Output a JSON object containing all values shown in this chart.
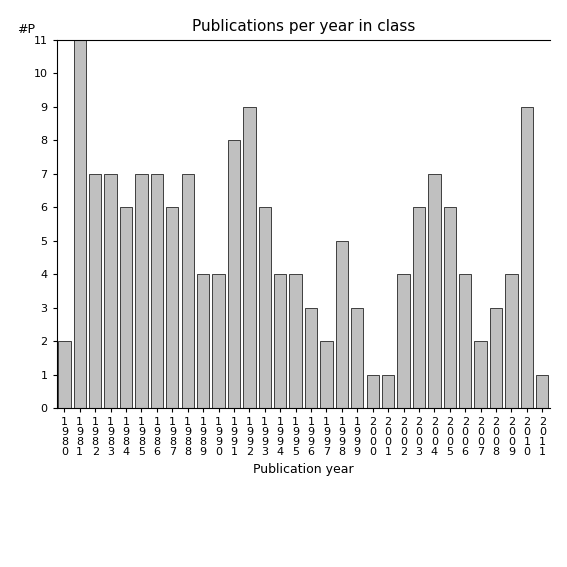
{
  "title": "Publications per year in class",
  "xlabel": "Publication year",
  "ylabel": "#P",
  "years": [
    "1980",
    "1981",
    "1982",
    "1983",
    "1984",
    "1985",
    "1986",
    "1987",
    "1988",
    "1989",
    "1990",
    "1991",
    "1992",
    "1993",
    "1994",
    "1995",
    "1996",
    "1997",
    "1998",
    "1999",
    "2000",
    "2001",
    "2002",
    "2003",
    "2004",
    "2005",
    "2006",
    "2007",
    "2008",
    "2009",
    "2010",
    "2011"
  ],
  "values": [
    2,
    11,
    7,
    7,
    6,
    7,
    7,
    6,
    7,
    4,
    4,
    8,
    9,
    6,
    4,
    4,
    3,
    2,
    5,
    3,
    1,
    1,
    4,
    6,
    7,
    6,
    4,
    2,
    3,
    4,
    9,
    1
  ],
  "bar_color": "#c0c0c0",
  "bar_edgecolor": "#000000",
  "ylim": [
    0,
    11
  ],
  "yticks": [
    0,
    1,
    2,
    3,
    4,
    5,
    6,
    7,
    8,
    9,
    10,
    11
  ],
  "background_color": "#ffffff",
  "title_fontsize": 11,
  "label_fontsize": 9,
  "tick_fontsize": 8
}
